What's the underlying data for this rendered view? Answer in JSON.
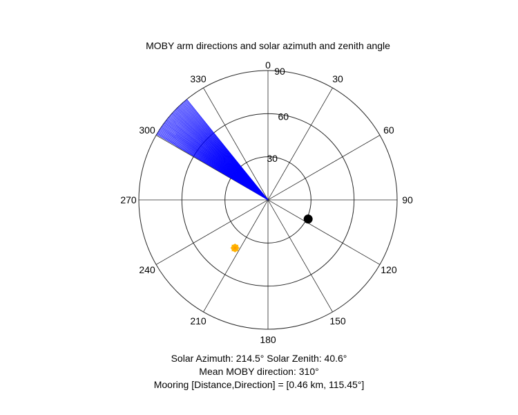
{
  "chart_data": {
    "type": "polar",
    "title": "MOBY arm directions and solar azimuth and zenith angle",
    "orientation": "clockwise, 0 at top",
    "angle_ticks": [
      "0",
      "30",
      "60",
      "90",
      "120",
      "150",
      "180",
      "210",
      "240",
      "270",
      "300",
      "330"
    ],
    "radial_range": [
      90,
      0
    ],
    "radial_ticks": [
      "30",
      "60",
      "90"
    ],
    "grid": true,
    "series": [
      {
        "marker": "line",
        "color": "#0000ff",
        "directions_deg": [
          300.5,
          301,
          301.5,
          302,
          302.5,
          303,
          303.5,
          304,
          304.5,
          305,
          305.5,
          306,
          306.5,
          307,
          307.5,
          308,
          308.5,
          309,
          309.5,
          310,
          310.5,
          311,
          311.5,
          312,
          312.5,
          313,
          313.5,
          314,
          314.5,
          315,
          315.5,
          316,
          316.5,
          317,
          317.5,
          318,
          318.5,
          319,
          319.5,
          320,
          320.5,
          321
        ],
        "radius": 90
      },
      {
        "marker": "sun",
        "color": "#ffc000",
        "azimuth_deg": 214.5,
        "zenith_deg": 40.6
      },
      {
        "marker": "dot",
        "color": "#000000",
        "direction_deg": 115.45,
        "radius": 31
      }
    ]
  },
  "captions": {
    "solar": "Solar Azimuth: 214.5°    Solar Zenith: 40.6°",
    "moby": "Mean MOBY direction: 310°",
    "mooring": "Mooring [Distance,Direction] = [0.46 km, 115.45°]"
  }
}
